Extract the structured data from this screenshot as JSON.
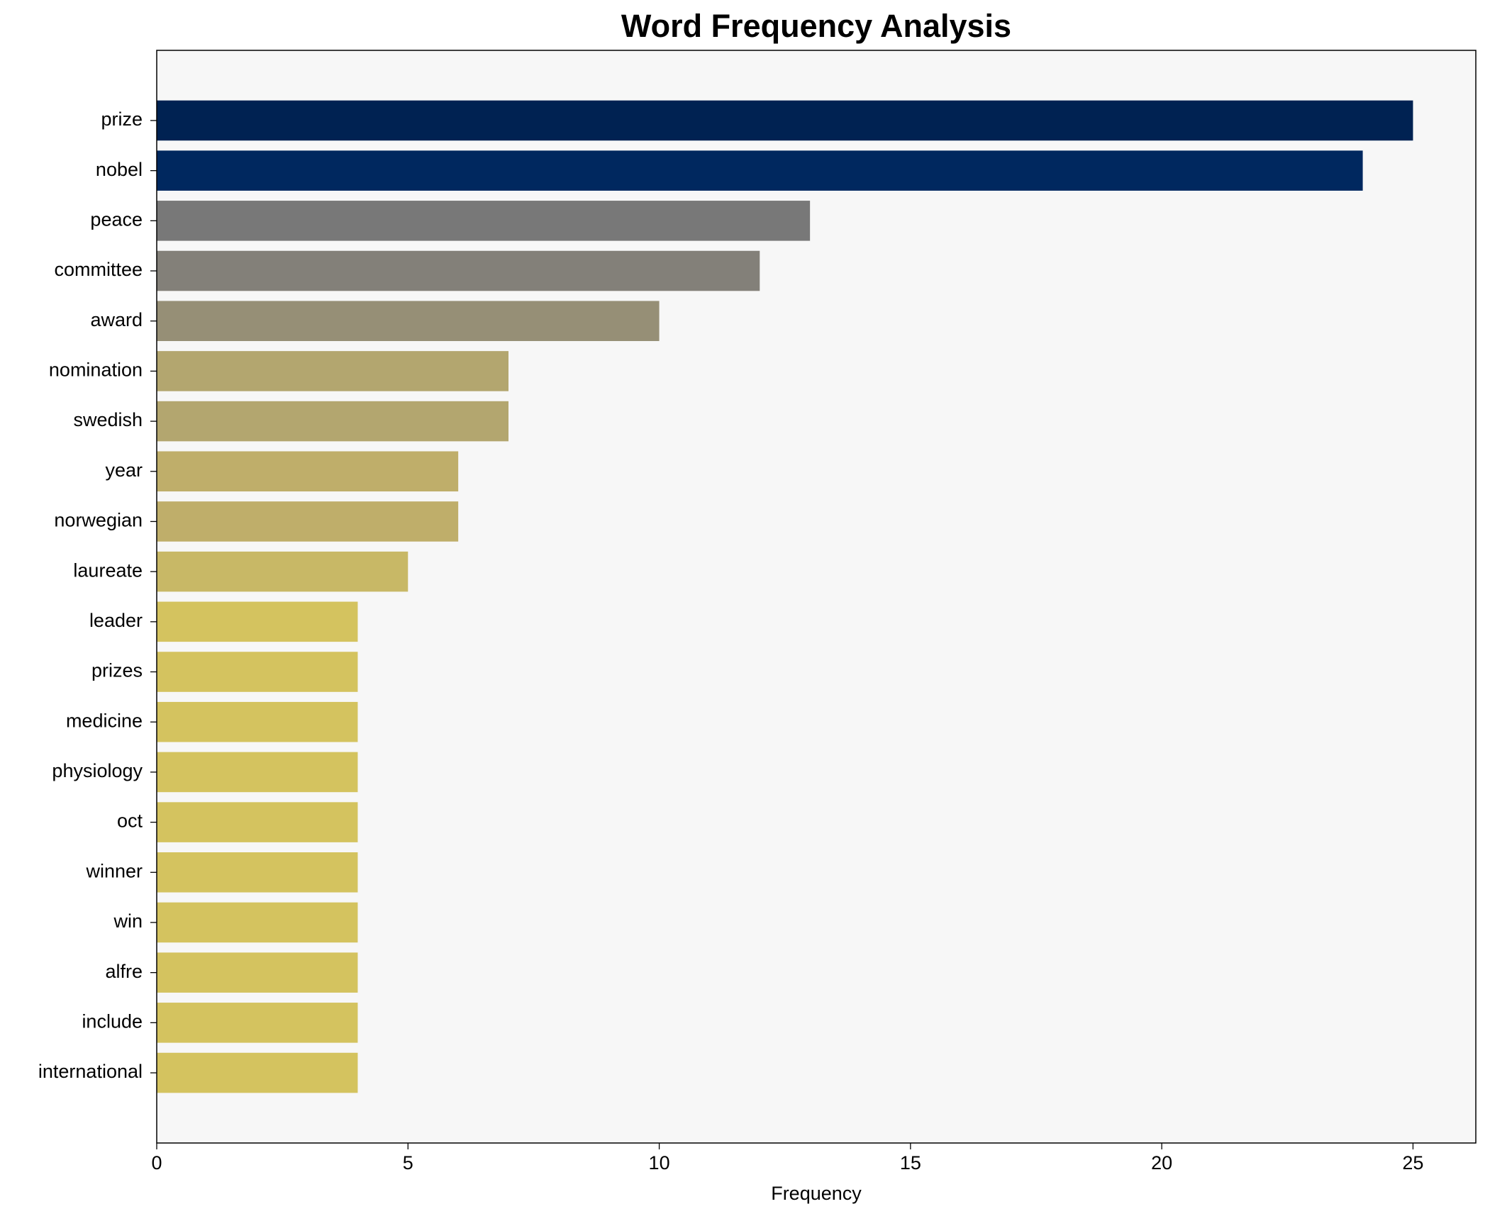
{
  "chart_data": {
    "type": "barh",
    "title": "Word Frequency Analysis",
    "xlabel": "Frequency",
    "categories": [
      "prize",
      "nobel",
      "peace",
      "committee",
      "award",
      "nomination",
      "swedish",
      "year",
      "norwegian",
      "laureate",
      "leader",
      "prizes",
      "medicine",
      "physiology",
      "oct",
      "winner",
      "win",
      "alfre",
      "include",
      "international"
    ],
    "values": [
      25,
      24,
      13,
      12,
      10,
      7,
      7,
      6,
      6,
      5,
      4,
      4,
      4,
      4,
      4,
      4,
      4,
      4,
      4,
      4
    ],
    "colors": [
      "#002252",
      "#00285f",
      "#787878",
      "#838079",
      "#968f76",
      "#b3a66f",
      "#b3a66f",
      "#bfae6a",
      "#bfae6a",
      "#c8b866",
      "#d4c35f",
      "#d4c35f",
      "#d4c35f",
      "#d4c35f",
      "#d4c35f",
      "#d4c35f",
      "#d4c35f",
      "#d4c35f",
      "#d4c35f",
      "#d4c35f"
    ],
    "xlim": [
      0,
      26.25
    ],
    "xticks": [
      0,
      5,
      10,
      15,
      20,
      25
    ]
  }
}
